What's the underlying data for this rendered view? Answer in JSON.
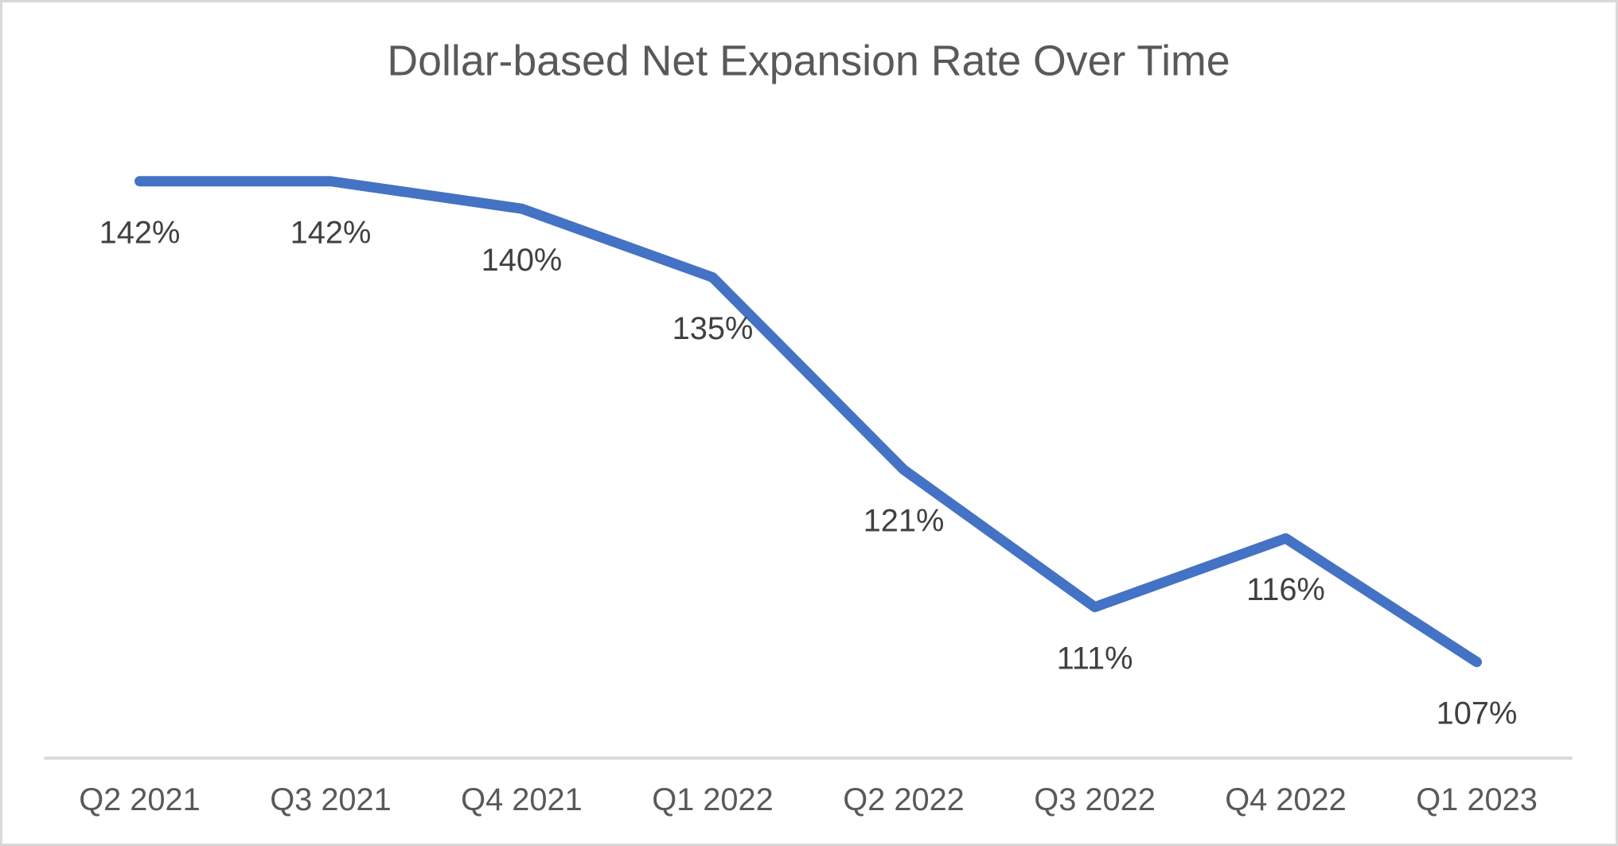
{
  "chart_data": {
    "type": "line",
    "title": "Dollar-based Net Expansion Rate Over Time",
    "categories": [
      "Q2 2021",
      "Q3 2021",
      "Q4 2021",
      "Q1 2022",
      "Q2 2022",
      "Q3 2022",
      "Q4 2022",
      "Q1 2023"
    ],
    "values": [
      142,
      142,
      140,
      135,
      121,
      111,
      116,
      107
    ],
    "data_labels": [
      "142%",
      "142%",
      "140%",
      "135%",
      "121%",
      "111%",
      "116%",
      "107%"
    ],
    "unit": "%",
    "xlabel": "",
    "ylabel": "",
    "ylim": [
      100,
      142
    ],
    "grid": false,
    "legend": false,
    "data_label_position": "below",
    "colors": {
      "line": "#4472C4",
      "axis_line": "#D9D9D9",
      "title_text": "#595959",
      "data_label_text": "#404040",
      "axis_label_text": "#595959",
      "frame_border": "#D8D8D8",
      "background": "#FFFFFF"
    }
  }
}
